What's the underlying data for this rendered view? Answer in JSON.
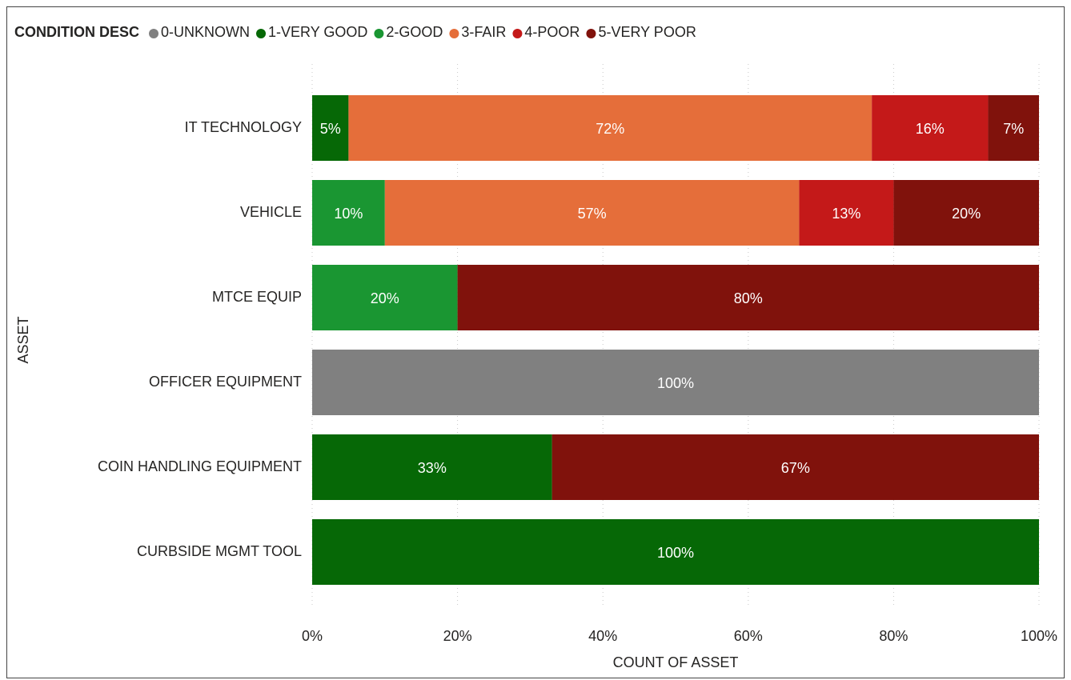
{
  "chart_data": {
    "type": "stacked_bar_horizontal",
    "legend_title": "CONDITION DESC",
    "x_label": "COUNT OF ASSET",
    "y_label": "ASSET",
    "categories": [
      "IT TECHNOLOGY",
      "VEHICLE",
      "MTCE EQUIP",
      "OFFICER EQUIPMENT",
      "COIN HANDLING EQUIPMENT",
      "CURBSIDE MGMT TOOL"
    ],
    "series": [
      {
        "name": "0-UNKNOWN",
        "color": "#808080",
        "values": [
          null,
          null,
          null,
          100,
          null,
          null
        ],
        "value_labels": [
          null,
          null,
          null,
          "100%",
          null,
          null
        ]
      },
      {
        "name": "1-VERY GOOD",
        "color": "#066806",
        "values": [
          5,
          null,
          null,
          null,
          33,
          100
        ],
        "value_labels": [
          "5%",
          null,
          null,
          null,
          "33%",
          "100%"
        ]
      },
      {
        "name": "2-GOOD",
        "color": "#1a9632",
        "values": [
          null,
          10,
          20,
          null,
          null,
          null
        ],
        "value_labels": [
          null,
          "10%",
          "20%",
          null,
          null,
          null
        ]
      },
      {
        "name": "3-FAIR",
        "color": "#e56e3a",
        "values": [
          72,
          57,
          null,
          null,
          null,
          null
        ],
        "value_labels": [
          "72%",
          "57%",
          null,
          null,
          null,
          null
        ]
      },
      {
        "name": "4-POOR",
        "color": "#c41919",
        "values": [
          16,
          13,
          null,
          null,
          null,
          null
        ],
        "value_labels": [
          "16%",
          "13%",
          null,
          null,
          null,
          null
        ]
      },
      {
        "name": "5-VERY POOR",
        "color": "#80120c",
        "values": [
          7,
          20,
          80,
          null,
          67,
          null
        ],
        "value_labels": [
          "7%",
          "20%",
          "80%",
          null,
          "67%",
          null
        ]
      }
    ],
    "xlim": [
      0,
      100
    ],
    "xticks": [
      {
        "value": 0,
        "label": "0%"
      },
      {
        "value": 20,
        "label": "20%"
      },
      {
        "value": 40,
        "label": "40%"
      },
      {
        "value": 60,
        "label": "60%"
      },
      {
        "value": 80,
        "label": "80%"
      },
      {
        "value": 100,
        "label": "100%"
      }
    ],
    "grid": true,
    "legend": "top-left"
  }
}
